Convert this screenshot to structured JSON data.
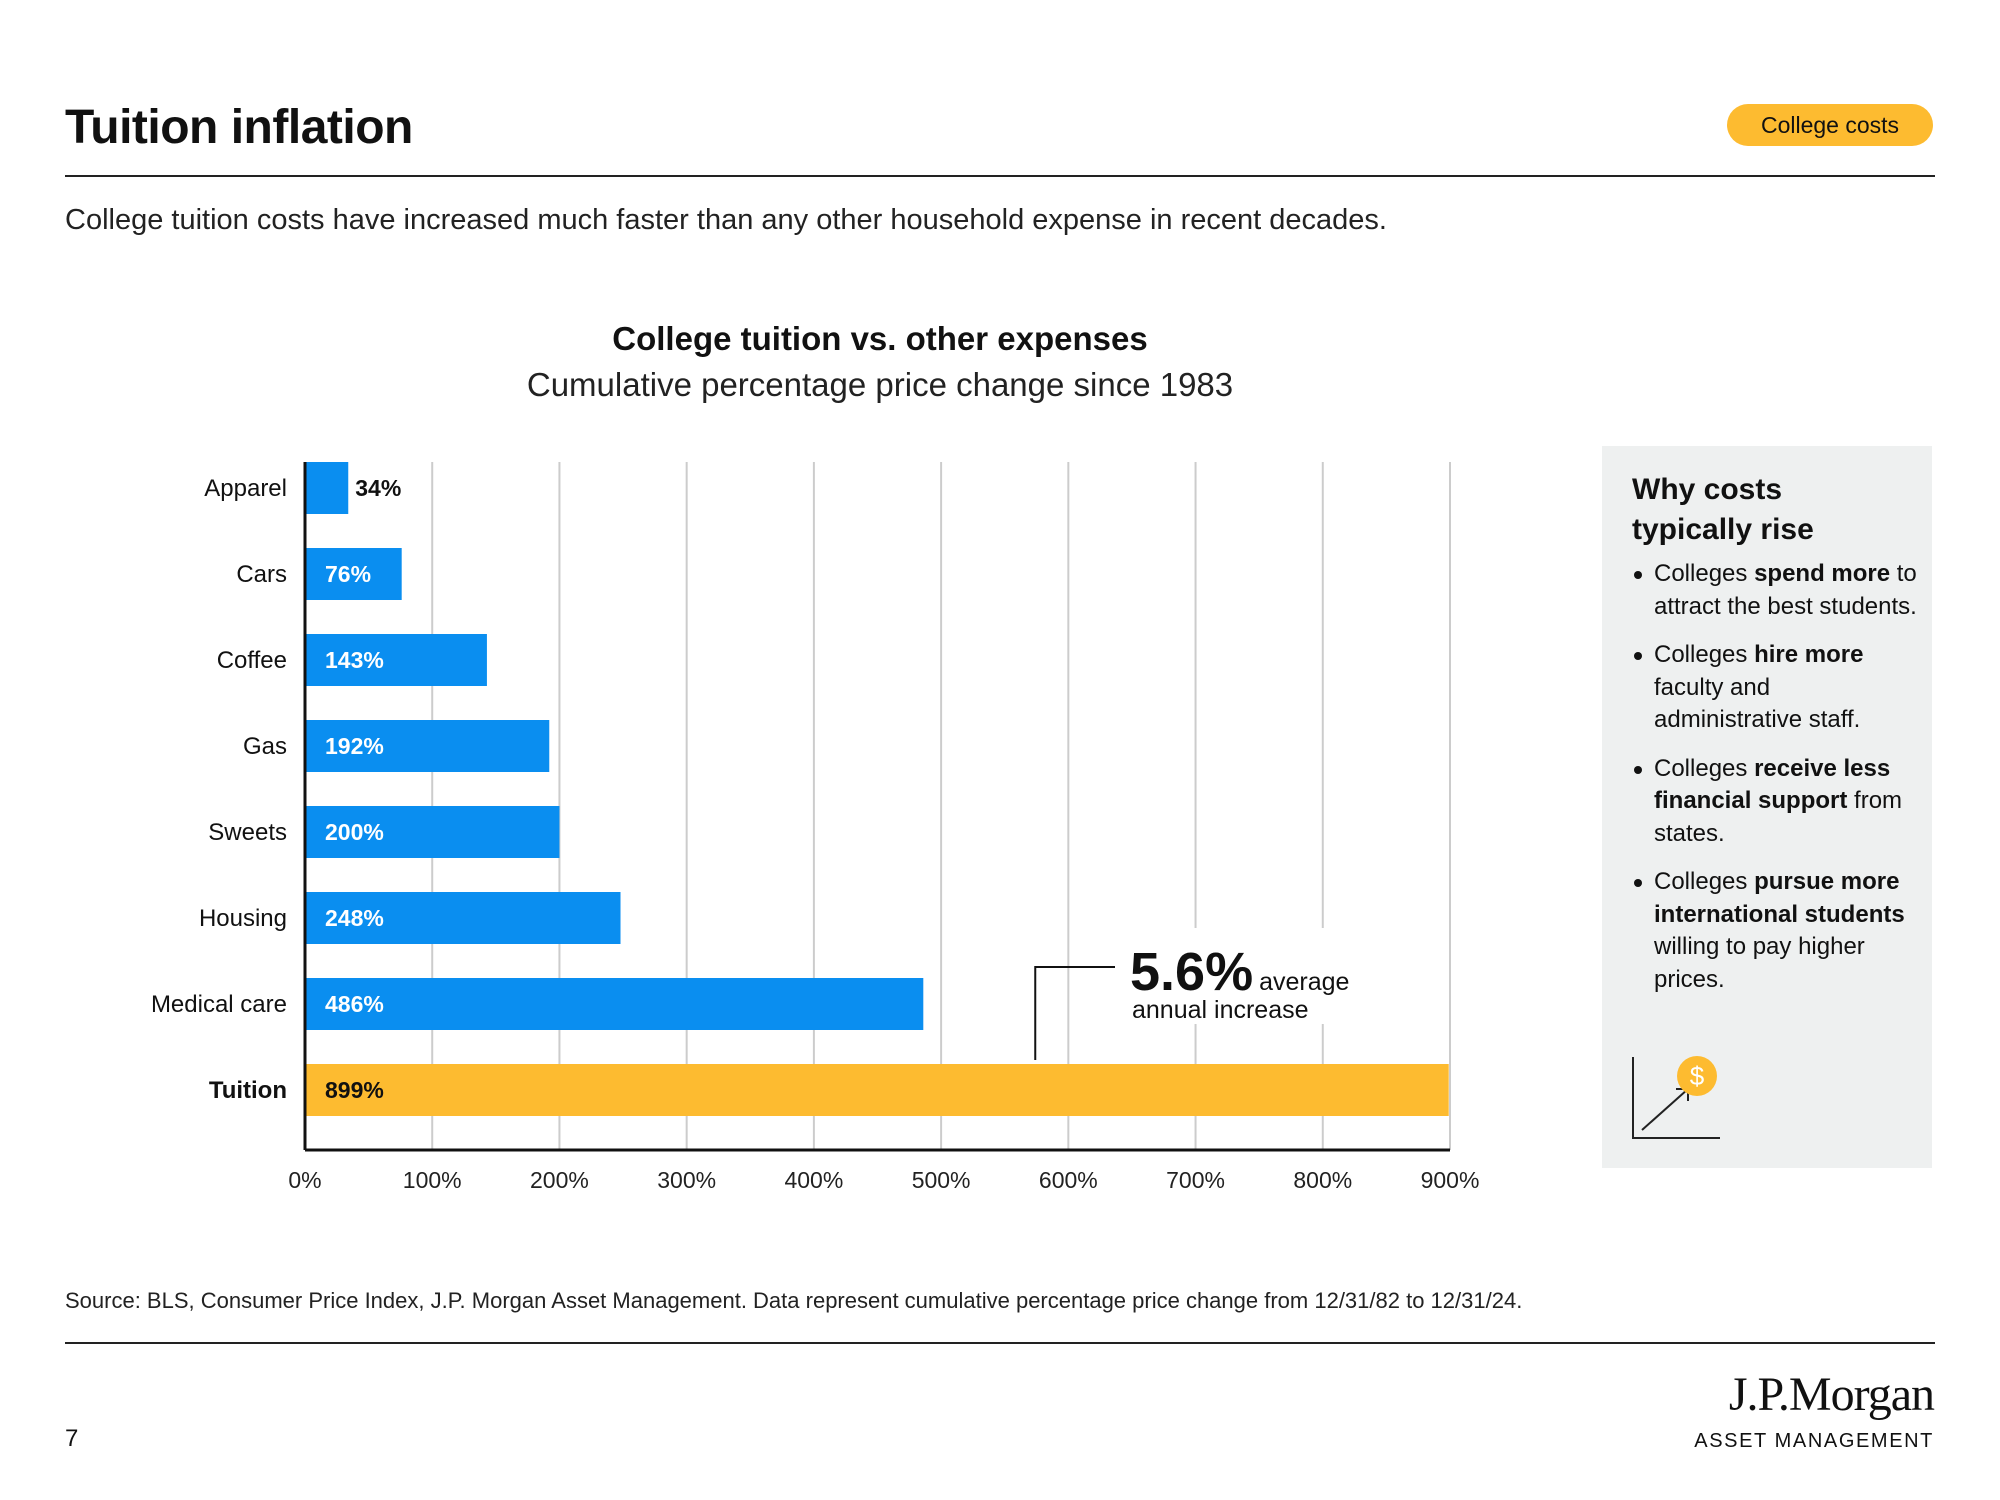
{
  "header": {
    "title": "Tuition inflation",
    "tag": "College costs",
    "subtitle": "College tuition costs have increased much faster than any other household expense in recent decades."
  },
  "colors": {
    "bar": "#0a8ef0",
    "highlight_bar": "#fdbb30",
    "tag": "#fdbb30",
    "panel_bg": "#eef0f0",
    "gridline": "#cccccc"
  },
  "chart_data": {
    "type": "bar",
    "orientation": "horizontal",
    "title": "College tuition vs. other expenses",
    "subtitle": "Cumulative percentage price change since 1983",
    "categories": [
      "Apparel",
      "Cars",
      "Coffee",
      "Gas",
      "Sweets",
      "Housing",
      "Medical care",
      "Tuition"
    ],
    "values": [
      34,
      76,
      143,
      192,
      200,
      248,
      486,
      899
    ],
    "value_labels": [
      "34%",
      "76%",
      "143%",
      "192%",
      "200%",
      "248%",
      "486%",
      "899%"
    ],
    "highlight_category": "Tuition",
    "xlim": [
      0,
      900
    ],
    "xticks": [
      0,
      100,
      200,
      300,
      400,
      500,
      600,
      700,
      800,
      900
    ],
    "xtick_labels": [
      "0%",
      "100%",
      "200%",
      "300%",
      "400%",
      "500%",
      "600%",
      "700%",
      "800%",
      "900%"
    ],
    "grid": "vertical",
    "xlabel": "",
    "ylabel": "",
    "annotation": {
      "big": "5.6%",
      "small": "average",
      "line2": "annual increase",
      "anchor_x": 574
    }
  },
  "sidebar": {
    "title_line1": "Why costs",
    "title_line2": "typically rise",
    "icon": "rising-cost-chart-icon",
    "items": [
      {
        "text_html": "Colleges <b>spend more</b> to attract the best students."
      },
      {
        "text_html": "Colleges <b>hire more</b> faculty and administrative staff."
      },
      {
        "text_html": "Colleges <b>receive less financial support</b> from states."
      },
      {
        "text_html": "Colleges <b>pursue more international students</b> willing to pay higher prices."
      }
    ]
  },
  "footer": {
    "source": "Source: BLS, Consumer Price Index, J.P. Morgan Asset Management. Data represent cumulative percentage price change from 12/31/82 to 12/31/24.",
    "page_number": "7",
    "logo_main": "J.P.Morgan",
    "logo_sub": "ASSET MANAGEMENT"
  }
}
